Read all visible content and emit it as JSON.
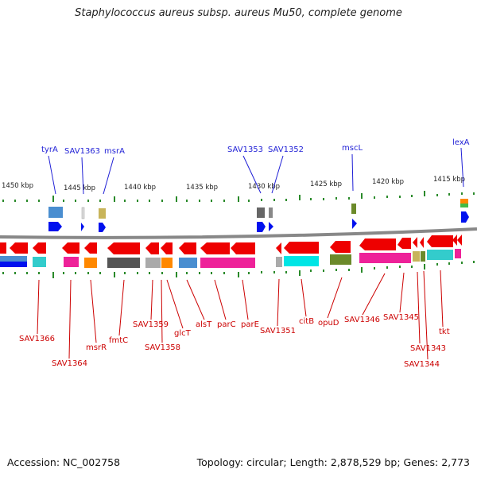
{
  "title": "Staphylococcus aureus subsp. aureus Mu50, complete genome",
  "footer": {
    "accession": "Accession: NC_002758",
    "summary": "Topology: circular; Length: 2,878,529 bp; Genes: 2,773"
  },
  "colors": {
    "label_top": "#1f1fd6",
    "label_bottom": "#cc0000",
    "backbone": "#8a8a8a",
    "tick": "#2a8a2a",
    "arrow_red": "#ee0000",
    "arrow_blue": "#0011ee"
  },
  "scale_ticks": [
    "1450 kbp",
    "1445 kbp",
    "1440 kbp",
    "1435 kbp",
    "1430 kbp",
    "1425 kbp",
    "1420 kbp",
    "1415 kbp"
  ],
  "top_genes": [
    "tyrA",
    "SAV1363",
    "msrA",
    "SAV1353",
    "SAV1352",
    "mscL",
    "lexA"
  ],
  "bottom_genes": [
    "SAV1366",
    "SAV1364",
    "msrR",
    "fmtC",
    "SAV1359",
    "SAV1358",
    "glcT",
    "alsT",
    "parC",
    "parE",
    "SAV1351",
    "citB",
    "opuD",
    "SAV1346",
    "SAV1345",
    "SAV1343",
    "SAV1344",
    "tkt"
  ]
}
